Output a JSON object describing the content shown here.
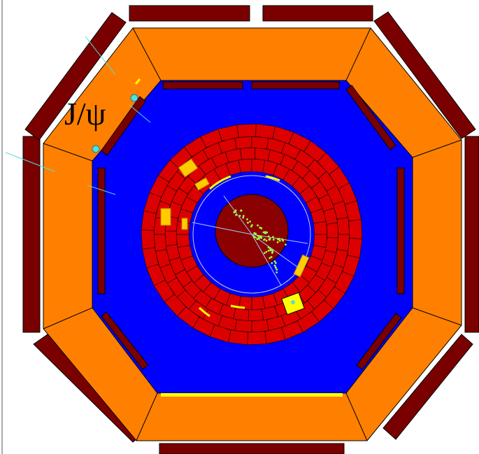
{
  "label": "J/ψ"
}
